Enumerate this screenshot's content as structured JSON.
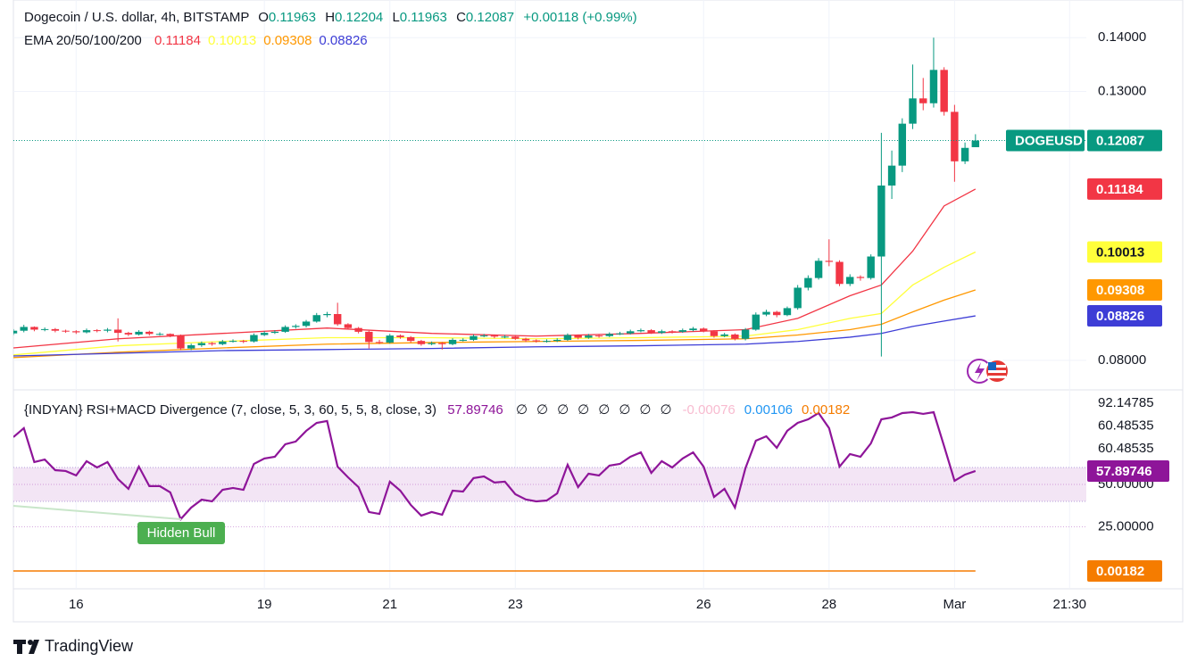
{
  "chart_data": {
    "type": "candlestick",
    "title": "Dogecoin / U.S. dollar, 4h, BITSTAMP",
    "ohlc_letters": [
      "O",
      "H",
      "L",
      "C"
    ],
    "change": "+0.00118 (+0.99%)",
    "symbol": "DOGEUSD",
    "up_color": "#089981",
    "down_color": "#f23645",
    "xlim": [
      0,
      102.6
    ],
    "xticks": [
      {
        "value": 6,
        "label": "16"
      },
      {
        "value": 24,
        "label": "19"
      },
      {
        "value": 36,
        "label": "21"
      },
      {
        "value": 48,
        "label": "23"
      },
      {
        "value": 66,
        "label": "26"
      },
      {
        "value": 78,
        "label": "28"
      },
      {
        "value": 90,
        "label": "Mar"
      },
      {
        "value": 101,
        "label": "21:30"
      }
    ],
    "ylim": [
      0.0745,
      0.147
    ],
    "yticks": [
      {
        "value": 0.14,
        "label": "0.14000"
      },
      {
        "value": 0.13,
        "label": "0.13000"
      },
      {
        "value": 0.08,
        "label": "0.08000"
      }
    ],
    "grid": true,
    "open": [
      0.085,
      0.0855,
      0.0862,
      0.0857,
      0.0858,
      0.0855,
      0.0854,
      0.0852,
      0.0856,
      0.0855,
      0.0857,
      0.0851,
      0.0848,
      0.0853,
      0.0849,
      0.0849,
      0.0846,
      0.0822,
      0.0828,
      0.0832,
      0.083,
      0.0835,
      0.0836,
      0.0835,
      0.0847,
      0.0851,
      0.0853,
      0.0862,
      0.0864,
      0.0872,
      0.0884,
      0.0886,
      0.0867,
      0.086,
      0.0853,
      0.0834,
      0.0833,
      0.0846,
      0.0843,
      0.0836,
      0.083,
      0.0832,
      0.083,
      0.0838,
      0.0838,
      0.0845,
      0.0846,
      0.0844,
      0.0844,
      0.084,
      0.0837,
      0.0836,
      0.0836,
      0.0838,
      0.0847,
      0.0842,
      0.0846,
      0.0845,
      0.0849,
      0.085,
      0.0854,
      0.0856,
      0.0851,
      0.0854,
      0.0853,
      0.0856,
      0.0859,
      0.0854,
      0.0845,
      0.0848,
      0.084,
      0.0857,
      0.0885,
      0.089,
      0.0884,
      0.0897,
      0.0935,
      0.0953,
      0.0985,
      0.0983,
      0.0942,
      0.0955,
      0.0953,
      0.0993,
      0.1125,
      0.1162,
      0.124,
      0.1287,
      0.1278,
      0.134,
      0.1262,
      0.117,
      0.11963
    ],
    "high": [
      0.0858,
      0.0866,
      0.0863,
      0.0861,
      0.086,
      0.0857,
      0.0856,
      0.0859,
      0.0858,
      0.086,
      0.0878,
      0.0853,
      0.0856,
      0.0855,
      0.0852,
      0.085,
      0.0848,
      0.0831,
      0.0835,
      0.0834,
      0.0838,
      0.0839,
      0.0838,
      0.085,
      0.0854,
      0.0856,
      0.0865,
      0.0867,
      0.0875,
      0.0888,
      0.089,
      0.0907,
      0.0869,
      0.0862,
      0.0855,
      0.0838,
      0.0849,
      0.0848,
      0.0845,
      0.0838,
      0.0835,
      0.0834,
      0.0841,
      0.0841,
      0.0848,
      0.0849,
      0.0848,
      0.0847,
      0.0846,
      0.0842,
      0.0839,
      0.0839,
      0.0841,
      0.085,
      0.0848,
      0.0849,
      0.0848,
      0.0852,
      0.0853,
      0.0857,
      0.0859,
      0.0858,
      0.0857,
      0.0856,
      0.0859,
      0.0862,
      0.0861,
      0.0856,
      0.0851,
      0.085,
      0.086,
      0.0889,
      0.0894,
      0.0892,
      0.09,
      0.094,
      0.0958,
      0.099,
      0.1025,
      0.0986,
      0.096,
      0.0958,
      0.0997,
      0.1223,
      0.119,
      0.125,
      0.135,
      0.1325,
      0.14,
      0.1345,
      0.1275,
      0.1205,
      0.12204
    ],
    "low": [
      0.0847,
      0.0852,
      0.0854,
      0.0854,
      0.0852,
      0.0851,
      0.0849,
      0.085,
      0.0852,
      0.0852,
      0.0835,
      0.0845,
      0.0846,
      0.0846,
      0.0846,
      0.0843,
      0.0819,
      0.0819,
      0.0825,
      0.0827,
      0.0828,
      0.0833,
      0.0832,
      0.0833,
      0.0845,
      0.0849,
      0.0851,
      0.0859,
      0.0861,
      0.087,
      0.088,
      0.0864,
      0.0857,
      0.085,
      0.0822,
      0.083,
      0.0831,
      0.084,
      0.0833,
      0.0827,
      0.0828,
      0.082,
      0.0828,
      0.0835,
      0.0836,
      0.0843,
      0.0841,
      0.0841,
      0.0838,
      0.0834,
      0.0833,
      0.0833,
      0.0834,
      0.0836,
      0.0839,
      0.084,
      0.0842,
      0.0843,
      0.0847,
      0.0848,
      0.0852,
      0.0849,
      0.0849,
      0.085,
      0.0851,
      0.0854,
      0.0852,
      0.0842,
      0.0843,
      0.0837,
      0.0837,
      0.0855,
      0.0882,
      0.088,
      0.0882,
      0.0894,
      0.093,
      0.095,
      0.0975,
      0.0938,
      0.0938,
      0.0948,
      0.095,
      0.0807,
      0.11,
      0.115,
      0.123,
      0.1265,
      0.127,
      0.1255,
      0.1132,
      0.1165,
      0.11963
    ],
    "close": [
      0.0855,
      0.0862,
      0.0857,
      0.0858,
      0.0855,
      0.0854,
      0.0852,
      0.0856,
      0.0855,
      0.0857,
      0.0851,
      0.0848,
      0.0853,
      0.0849,
      0.0849,
      0.0846,
      0.0822,
      0.0828,
      0.0832,
      0.083,
      0.0835,
      0.0836,
      0.0835,
      0.0847,
      0.0851,
      0.0853,
      0.0862,
      0.0864,
      0.0872,
      0.0884,
      0.0886,
      0.0867,
      0.086,
      0.0853,
      0.0834,
      0.0833,
      0.0846,
      0.0843,
      0.0836,
      0.083,
      0.0832,
      0.083,
      0.0838,
      0.0838,
      0.0845,
      0.0846,
      0.0844,
      0.0844,
      0.084,
      0.0837,
      0.0836,
      0.0836,
      0.0838,
      0.0847,
      0.0842,
      0.0846,
      0.0845,
      0.0849,
      0.085,
      0.0854,
      0.0856,
      0.0851,
      0.0854,
      0.0853,
      0.0856,
      0.0859,
      0.0854,
      0.0845,
      0.0848,
      0.084,
      0.0857,
      0.0885,
      0.089,
      0.0884,
      0.0897,
      0.0935,
      0.0953,
      0.0985,
      0.0983,
      0.0942,
      0.0955,
      0.0953,
      0.0993,
      0.1125,
      0.1162,
      0.124,
      0.1287,
      0.1278,
      0.134,
      0.1262,
      0.117,
      0.1195,
      0.12087
    ],
    "ema": {
      "title": "EMA 20/50/100/200",
      "x": [
        0,
        10,
        20,
        30,
        40,
        50,
        60,
        70,
        75,
        80,
        83,
        86,
        89,
        92
      ],
      "series": [
        {
          "color": "#f23645",
          "text_color": "#ffffff",
          "values": [
            0.0823,
            0.084,
            0.085,
            0.086,
            0.085,
            0.0845,
            0.085,
            0.0857,
            0.0878,
            0.092,
            0.094,
            0.1003,
            0.1087,
            0.11184
          ]
        },
        {
          "color": "#ffff3b",
          "text_color": "#131722",
          "values": [
            0.081,
            0.0827,
            0.0835,
            0.0842,
            0.0842,
            0.084,
            0.0842,
            0.0845,
            0.0857,
            0.0878,
            0.0887,
            0.094,
            0.0973,
            0.10013
          ]
        },
        {
          "color": "#ff9800",
          "text_color": "#ffffff",
          "values": [
            0.0805,
            0.0815,
            0.0823,
            0.083,
            0.0833,
            0.0835,
            0.0837,
            0.084,
            0.0847,
            0.0857,
            0.0867,
            0.089,
            0.0912,
            0.09308
          ]
        },
        {
          "color": "#3d3dd6",
          "text_color": "#ffffff",
          "values": [
            0.0808,
            0.0813,
            0.0818,
            0.082,
            0.0822,
            0.0825,
            0.0827,
            0.083,
            0.0835,
            0.0843,
            0.085,
            0.0863,
            0.0873,
            0.08826
          ]
        }
      ]
    },
    "rsi": {
      "title": "{INDYAN} RSI+MACD Divergence (7, close, 5, 3, 60, 5, 5, 8, close, 3)",
      "color": "#8e1599",
      "band_color": "#f3e5f5",
      "band": [
        40,
        60
      ],
      "ylim": [
        -11.6,
        104.2
      ],
      "yticks": [
        {
          "value": 50,
          "label": "50.00000"
        },
        {
          "value": 25,
          "label": "25.00000"
        }
      ],
      "right_labels": [
        "92.14785",
        "60.48535",
        "60.48535"
      ],
      "placeholders": [
        "∅",
        "∅",
        "∅",
        "∅",
        "∅",
        "∅",
        "∅",
        "∅"
      ],
      "values": [
        77.9,
        83.2,
        63.2,
        64.7,
        58.4,
        57.9,
        55.3,
        63.7,
        60,
        63.2,
        53.2,
        47.4,
        60.5,
        49,
        49,
        45.3,
        29.5,
        36.3,
        41,
        40,
        46.8,
        47.9,
        46.8,
        62.1,
        65.3,
        66.3,
        73.7,
        75.3,
        81.6,
        86.3,
        87.4,
        60.5,
        54.2,
        48.4,
        33.7,
        32.6,
        51.6,
        46.3,
        37.9,
        31.6,
        33.7,
        32.1,
        46.3,
        45.8,
        53.7,
        54.7,
        51.1,
        51.6,
        44.2,
        41.1,
        40,
        40.5,
        44.7,
        61.6,
        48.4,
        56.3,
        55.3,
        61.1,
        62.1,
        66.3,
        68.9,
        56.8,
        63.7,
        60,
        65.3,
        68.9,
        60.5,
        42.6,
        47.4,
        36.3,
        59.5,
        75.8,
        78.4,
        71.6,
        81.6,
        86.3,
        88.4,
        92.1,
        83.2,
        60.5,
        67.9,
        66.3,
        74.2,
        88.4,
        89.5,
        92.1,
        92.6,
        91.6,
        92.6,
        72.6,
        52.1,
        55.8,
        57.89746
      ],
      "macd": [
        {
          "value": -0.00076,
          "color": "#f8bbd0"
        },
        {
          "value": 0.00106,
          "color": "#2196f3"
        },
        {
          "value": 0.00182,
          "color": "#f57c00"
        }
      ],
      "y2lim": [
        -0.004,
        0.06
      ],
      "annotation": "Hidden Bull"
    },
    "brand": "TradingView"
  }
}
